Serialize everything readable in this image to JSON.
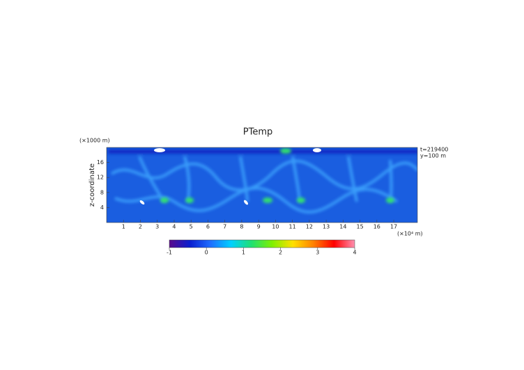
{
  "chart_data": {
    "type": "heatmap",
    "title": "PTemp",
    "y_label": "z-coordinate",
    "y_unit": "(×1000 m)",
    "x_unit": "(×10⁴ m)",
    "annotations": [
      "t=219400",
      "y=100 m"
    ],
    "xlim": [
      0,
      18.4
    ],
    "xticks": [
      1,
      2,
      3,
      4,
      5,
      6,
      7,
      8,
      9,
      10,
      11,
      12,
      13,
      14,
      15,
      16,
      17
    ],
    "ylim": [
      0,
      20
    ],
    "yticks": [
      4,
      8,
      12,
      16
    ],
    "colorbar": {
      "lim": [
        -1,
        4
      ],
      "ticks": [
        -1,
        0,
        1,
        2,
        3,
        4
      ],
      "colors": [
        "#5a0a8c",
        "#0a1ecf",
        "#1e6eff",
        "#00d0ff",
        "#20e070",
        "#80f000",
        "#ffe000",
        "#ff8000",
        "#ff0000",
        "#ff90b0"
      ]
    }
  }
}
